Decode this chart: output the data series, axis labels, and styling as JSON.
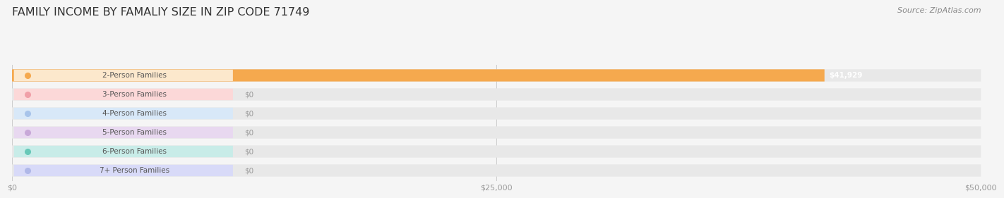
{
  "title": "FAMILY INCOME BY FAMALIY SIZE IN ZIP CODE 71749",
  "source": "Source: ZipAtlas.com",
  "categories": [
    "2-Person Families",
    "3-Person Families",
    "4-Person Families",
    "5-Person Families",
    "6-Person Families",
    "7+ Person Families"
  ],
  "values": [
    41929,
    0,
    0,
    0,
    0,
    0
  ],
  "bar_colors": [
    "#f5a94e",
    "#f0a0a8",
    "#a8c4ea",
    "#c8a8d8",
    "#68c8b8",
    "#b0b8e8"
  ],
  "label_bg_colors": [
    "#fce8cc",
    "#fcd8d8",
    "#d8e8f8",
    "#e8d8f0",
    "#c8ece8",
    "#d8daf8"
  ],
  "value_labels": [
    "$41,929",
    "$0",
    "$0",
    "$0",
    "$0",
    "$0"
  ],
  "xlim": [
    0,
    50000
  ],
  "xticks": [
    0,
    25000,
    50000
  ],
  "xticklabels": [
    "$0",
    "$25,000",
    "$50,000"
  ],
  "background_color": "#f5f5f5",
  "bar_bg_color": "#e8e8e8",
  "title_fontsize": 11.5,
  "source_fontsize": 8,
  "label_fontsize": 7.5,
  "value_fontsize": 7.5,
  "bar_height": 0.6
}
